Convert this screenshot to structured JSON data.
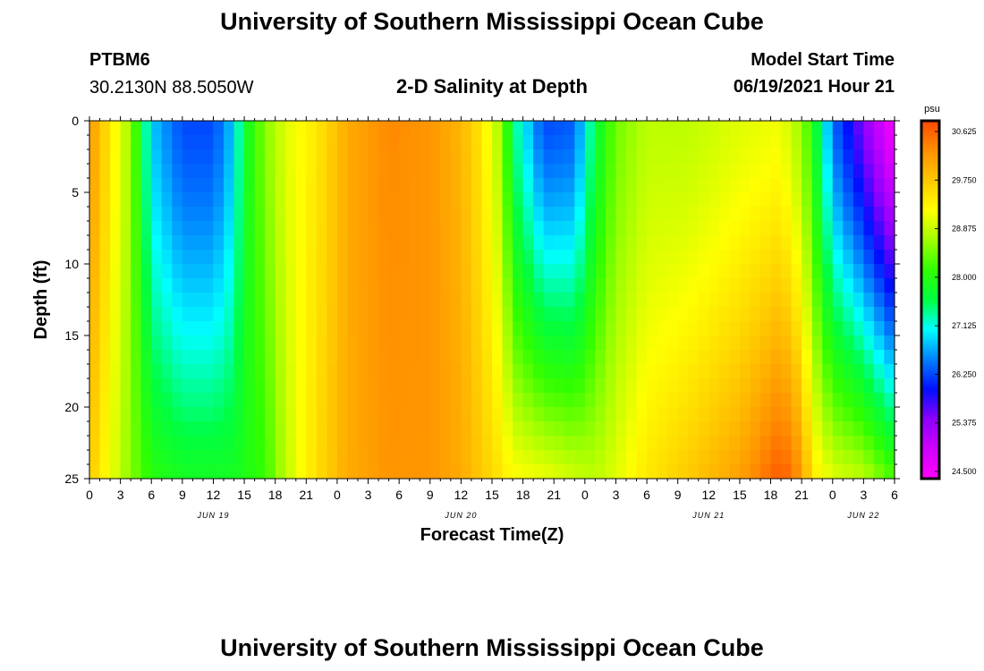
{
  "header": {
    "title": "University of Southern Mississippi Ocean Cube",
    "station_id": "PTBM6",
    "station_coords": "30.2130N  88.5050W",
    "plot_title": "2-D Salinity at Depth",
    "model_start_label": "Model Start Time",
    "model_start_value": "06/19/2021 Hour 21"
  },
  "footer": {
    "title": "University of Southern Mississippi Ocean Cube"
  },
  "colors": {
    "ramp": [
      "#ff00ff",
      "#d000ff",
      "#8c00ff",
      "#0010ff",
      "#0080ff",
      "#00ffff",
      "#00ff40",
      "#30ff00",
      "#a0ff00",
      "#ffff00",
      "#ffc800",
      "#ff9000",
      "#ff4800"
    ]
  },
  "chart_data": {
    "type": "heatmap",
    "title": "2-D Salinity at Depth",
    "xlabel": "Forecast Time(Z)",
    "ylabel": "Depth (ft)",
    "xlim": [
      0,
      78
    ],
    "ylim": [
      0,
      25
    ],
    "y_inverted": true,
    "x_ticks": [
      {
        "v": 0,
        "label": "0"
      },
      {
        "v": 3,
        "label": "3"
      },
      {
        "v": 6,
        "label": "6"
      },
      {
        "v": 9,
        "label": "9"
      },
      {
        "v": 12,
        "label": "12"
      },
      {
        "v": 15,
        "label": "15"
      },
      {
        "v": 18,
        "label": "18"
      },
      {
        "v": 21,
        "label": "21"
      },
      {
        "v": 24,
        "label": "0"
      },
      {
        "v": 27,
        "label": "3"
      },
      {
        "v": 30,
        "label": "6"
      },
      {
        "v": 33,
        "label": "9"
      },
      {
        "v": 36,
        "label": "12"
      },
      {
        "v": 39,
        "label": "15"
      },
      {
        "v": 42,
        "label": "18"
      },
      {
        "v": 45,
        "label": "21"
      },
      {
        "v": 48,
        "label": "0"
      },
      {
        "v": 51,
        "label": "3"
      },
      {
        "v": 54,
        "label": "6"
      },
      {
        "v": 57,
        "label": "9"
      },
      {
        "v": 60,
        "label": "12"
      },
      {
        "v": 63,
        "label": "15"
      },
      {
        "v": 66,
        "label": "18"
      },
      {
        "v": 69,
        "label": "21"
      },
      {
        "v": 72,
        "label": "0"
      },
      {
        "v": 75,
        "label": "3"
      },
      {
        "v": 78,
        "label": "6"
      }
    ],
    "date_labels": [
      {
        "v": 12,
        "label": "JUN 19"
      },
      {
        "v": 36,
        "label": "JUN 20"
      },
      {
        "v": 60,
        "label": "JUN 21"
      },
      {
        "v": 75,
        "label": "JUN 22"
      }
    ],
    "y_ticks": [
      {
        "v": 0,
        "label": "0"
      },
      {
        "v": 5,
        "label": "5"
      },
      {
        "v": 10,
        "label": "10"
      },
      {
        "v": 15,
        "label": "15"
      },
      {
        "v": 20,
        "label": "20"
      },
      {
        "v": 25,
        "label": "25"
      }
    ],
    "colorbar": {
      "unit": "psu",
      "min": 24.5,
      "max": 31.0,
      "labels": [
        "30.625",
        "29.750",
        "28.875",
        "28.000",
        "27.125",
        "26.250",
        "25.375",
        "24.500"
      ]
    },
    "profiles": [
      {
        "x": 0,
        "surface": 30.4,
        "bottom": 29.9
      },
      {
        "x": 2,
        "surface": 29.6,
        "bottom": 29.3
      },
      {
        "x": 4,
        "surface": 28.8,
        "bottom": 28.7
      },
      {
        "x": 6,
        "surface": 27.0,
        "bottom": 28.2
      },
      {
        "x": 9,
        "surface": 26.4,
        "bottom": 28.0
      },
      {
        "x": 12,
        "surface": 26.4,
        "bottom": 28.0
      },
      {
        "x": 14,
        "surface": 27.0,
        "bottom": 28.0
      },
      {
        "x": 15,
        "surface": 27.9,
        "bottom": 28.1
      },
      {
        "x": 17,
        "surface": 28.7,
        "bottom": 28.3
      },
      {
        "x": 19,
        "surface": 29.2,
        "bottom": 29.0
      },
      {
        "x": 22,
        "surface": 29.6,
        "bottom": 29.7
      },
      {
        "x": 25,
        "surface": 30.2,
        "bottom": 30.2
      },
      {
        "x": 29,
        "surface": 30.5,
        "bottom": 30.4
      },
      {
        "x": 33,
        "surface": 30.4,
        "bottom": 30.4
      },
      {
        "x": 36,
        "surface": 30.1,
        "bottom": 30.2
      },
      {
        "x": 38,
        "surface": 29.6,
        "bottom": 29.9
      },
      {
        "x": 40,
        "surface": 28.8,
        "bottom": 29.6
      },
      {
        "x": 41,
        "surface": 27.6,
        "bottom": 29.4
      },
      {
        "x": 44,
        "surface": 26.4,
        "bottom": 29.3
      },
      {
        "x": 47,
        "surface": 26.5,
        "bottom": 29.1
      },
      {
        "x": 49,
        "surface": 27.8,
        "bottom": 29.0
      },
      {
        "x": 51,
        "surface": 28.6,
        "bottom": 29.2
      },
      {
        "x": 54,
        "surface": 29.0,
        "bottom": 29.6
      },
      {
        "x": 58,
        "surface": 29.0,
        "bottom": 29.9
      },
      {
        "x": 63,
        "surface": 29.2,
        "bottom": 30.3
      },
      {
        "x": 67,
        "surface": 29.3,
        "bottom": 30.9
      },
      {
        "x": 69,
        "surface": 28.8,
        "bottom": 30.4
      },
      {
        "x": 70,
        "surface": 28.2,
        "bottom": 29.6
      },
      {
        "x": 72,
        "surface": 26.6,
        "bottom": 29.2
      },
      {
        "x": 75,
        "surface": 25.6,
        "bottom": 29.0
      },
      {
        "x": 78,
        "surface": 24.6,
        "bottom": 28.4
      }
    ]
  }
}
